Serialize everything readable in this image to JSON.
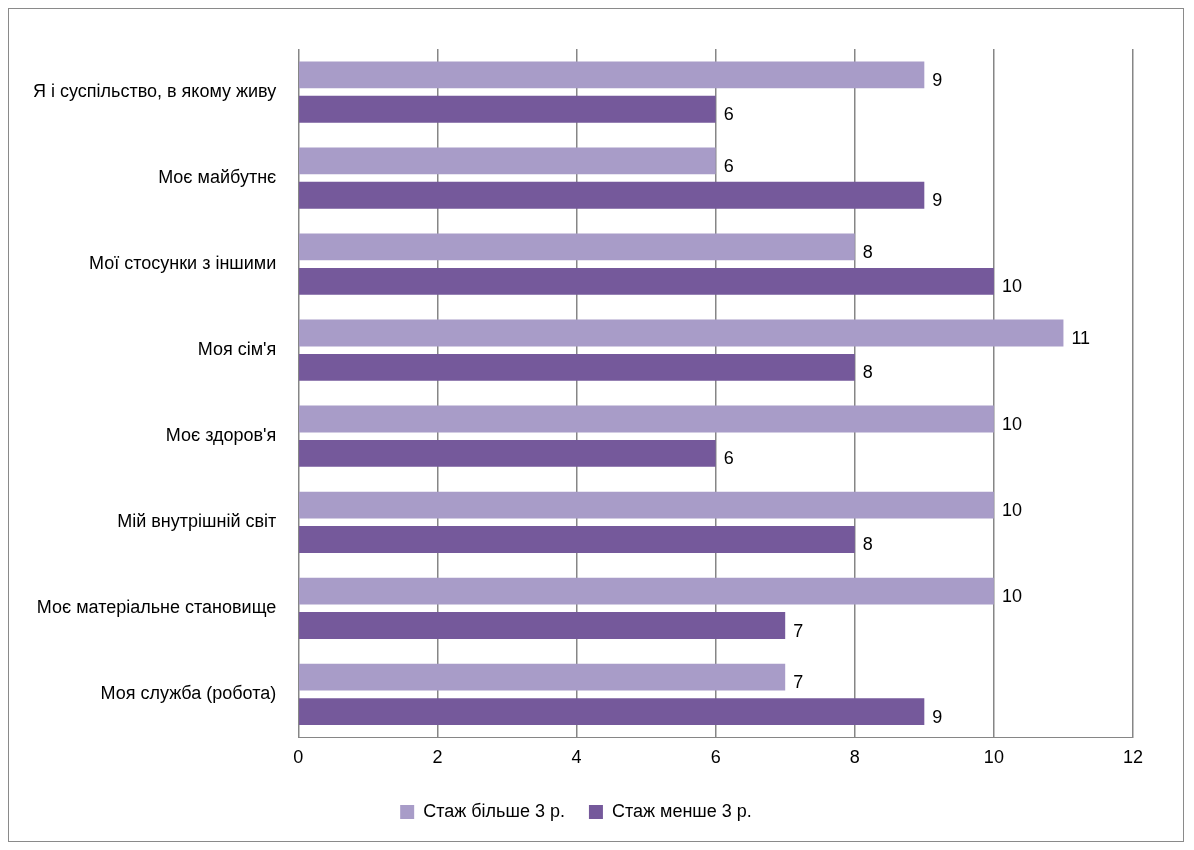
{
  "chart_data": {
    "type": "bar",
    "orientation": "horizontal",
    "categories": [
      "Я і суспільство, в якому живу",
      "Моє майбутнє",
      "Мої стосунки з іншими",
      "Моя сім'я",
      "Моє здоров'я",
      "Мій внутрішній світ",
      "Моє матеріальне становище",
      "Моя служба (робота)"
    ],
    "series": [
      {
        "name": "Стаж більше 3 р.",
        "color": "#a89cc8",
        "values": [
          9,
          6,
          8,
          11,
          10,
          10,
          10,
          7
        ]
      },
      {
        "name": "Стаж менше 3 р.",
        "color": "#75599b",
        "values": [
          6,
          9,
          10,
          8,
          6,
          8,
          7,
          9
        ]
      }
    ],
    "xlim": [
      0,
      12
    ],
    "xticks": [
      0,
      2,
      4,
      6,
      8,
      10,
      12
    ],
    "grid": "x",
    "legend": "bottom",
    "data_labels": true
  }
}
